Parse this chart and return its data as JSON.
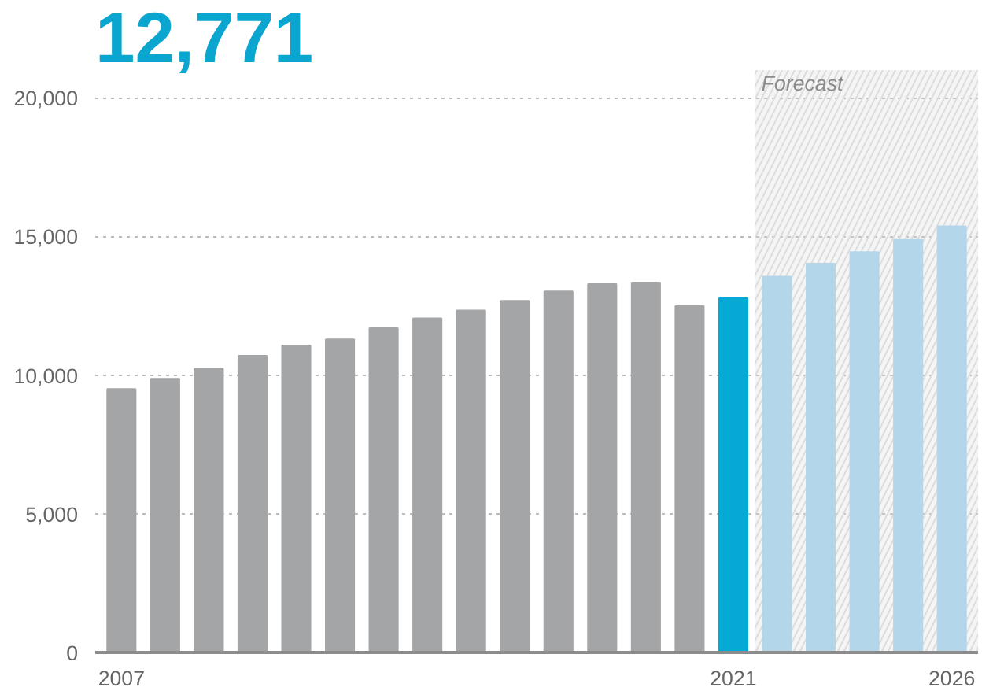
{
  "chart_data": {
    "type": "bar",
    "title": "12,771",
    "x": [
      2007,
      2008,
      2009,
      2010,
      2011,
      2012,
      2013,
      2014,
      2015,
      2016,
      2017,
      2018,
      2019,
      2020,
      2021,
      2022,
      2023,
      2024,
      2025,
      2026
    ],
    "values": [
      9500,
      9870,
      10230,
      10700,
      11060,
      11290,
      11690,
      12050,
      12330,
      12680,
      13020,
      13280,
      13340,
      12490,
      12771,
      13550,
      14020,
      14440,
      14880,
      15370
    ],
    "colors": [
      "#a4a5a7",
      "#a4a5a7",
      "#a4a5a7",
      "#a4a5a7",
      "#a4a5a7",
      "#a4a5a7",
      "#a4a5a7",
      "#a4a5a7",
      "#a4a5a7",
      "#a4a5a7",
      "#a4a5a7",
      "#a4a5a7",
      "#a4a5a7",
      "#a4a5a7",
      "#05a9d6",
      "#b3d6ea",
      "#b3d6ea",
      "#b3d6ea",
      "#b3d6ea",
      "#b3d6ea"
    ],
    "xlim": [
      2006.4,
      2026.6
    ],
    "xticks": [
      2007,
      2021,
      2026
    ],
    "ylim": [
      0,
      21000
    ],
    "yticks": [
      0,
      {
        "value": 5000,
        "label": "5,000"
      },
      {
        "value": 10000,
        "label": "10,000"
      },
      {
        "value": 15000,
        "label": "15,000"
      },
      {
        "value": 20000,
        "label": "20,000"
      }
    ],
    "grid": "y",
    "bands": [
      {
        "axis": "x",
        "from": 2021.5,
        "to": 2026.6,
        "label": "Forecast",
        "color": "#d9d9d9"
      }
    ]
  }
}
